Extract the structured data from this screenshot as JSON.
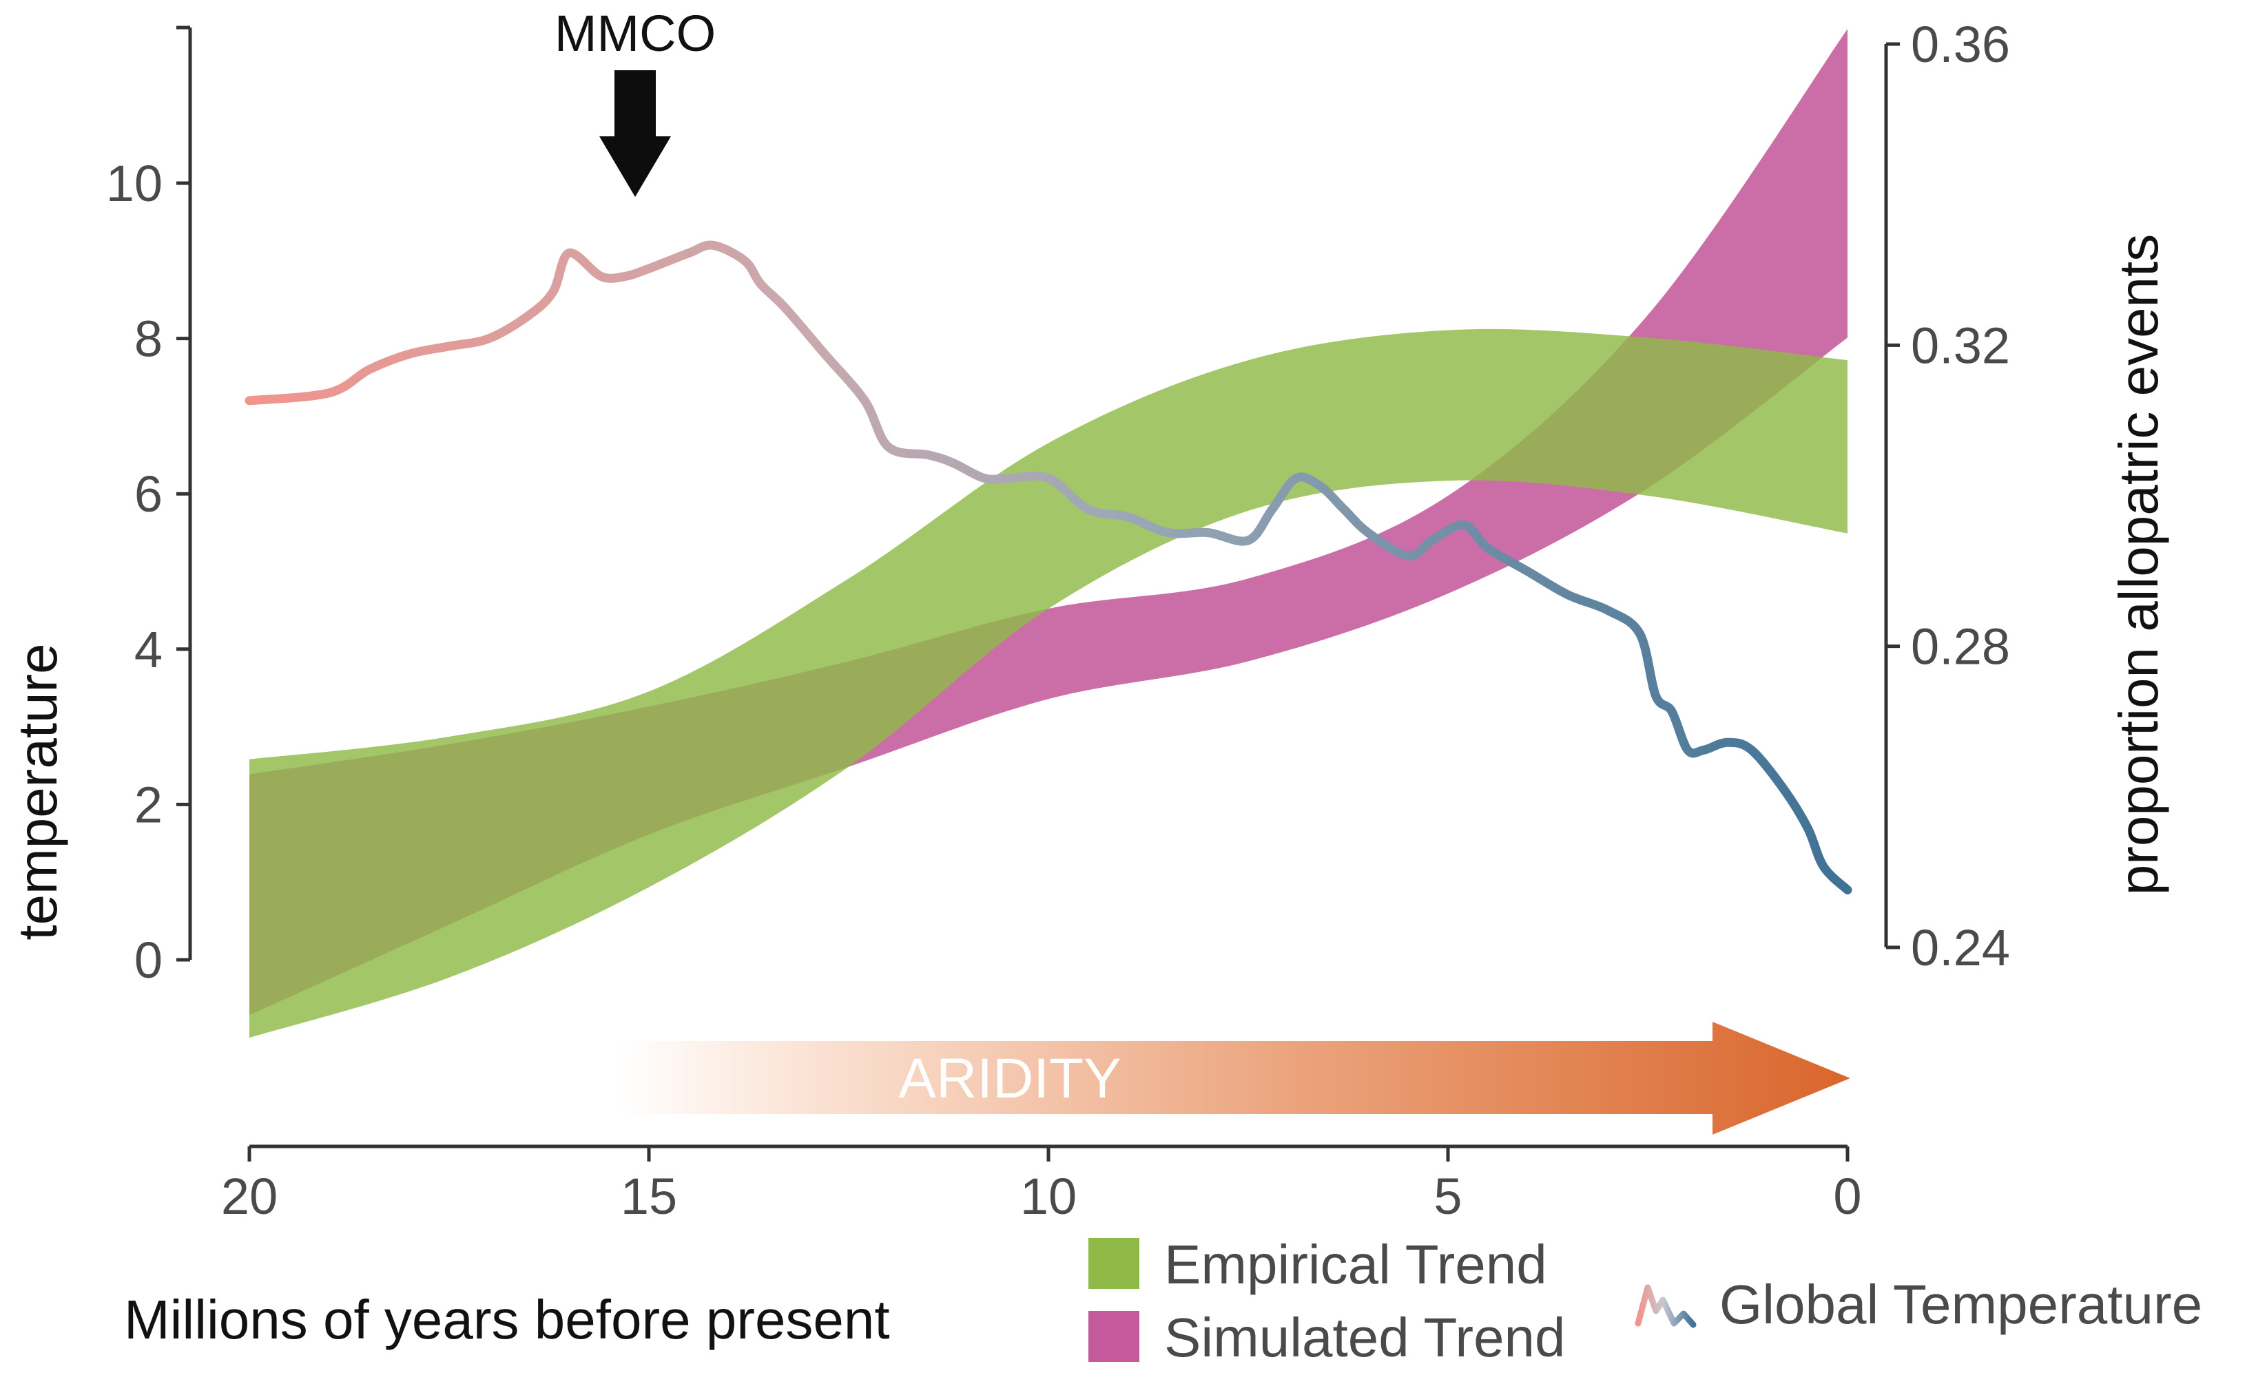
{
  "chart_data": {
    "type": "area",
    "xlabel": "Millions of years before present",
    "ylabel_left": "temperature",
    "ylabel_right": "proportion allopatric events",
    "xlim": [
      20,
      0
    ],
    "x_reversed": true,
    "ylim_left": [
      0,
      11
    ],
    "ylim_right": [
      0.24,
      0.36
    ],
    "x_ticks": [
      "20",
      "15",
      "10",
      "5",
      "0"
    ],
    "y_left_ticks": [
      "0",
      "2",
      "4",
      "6",
      "8",
      "10"
    ],
    "y_right_ticks": [
      "0.24",
      "0.28",
      "0.32",
      "0.36"
    ],
    "grid": false,
    "legend_position": "bottom-right",
    "series": [
      {
        "name": "Empirical Trend",
        "kind": "band",
        "axis": "right",
        "color": "#8fba48",
        "x": [
          20,
          17.5,
          15,
          12.5,
          10,
          7.5,
          5,
          2.5,
          0
        ],
        "lower": [
          0.228,
          0.236,
          0.248,
          0.264,
          0.285,
          0.298,
          0.302,
          0.3,
          0.295
        ],
        "upper": [
          0.265,
          0.268,
          0.274,
          0.289,
          0.307,
          0.318,
          0.322,
          0.321,
          0.318
        ]
      },
      {
        "name": "Simulated Trend",
        "kind": "band",
        "axis": "right",
        "color": "#c45a9c",
        "x": [
          20,
          17.5,
          15,
          12.5,
          10,
          7.5,
          5,
          2.5,
          0
        ],
        "lower": [
          0.231,
          0.243,
          0.255,
          0.264,
          0.273,
          0.278,
          0.287,
          0.301,
          0.321
        ],
        "upper": [
          0.263,
          0.267,
          0.272,
          0.278,
          0.285,
          0.289,
          0.3,
          0.324,
          0.362
        ]
      },
      {
        "name": "Global Temperature",
        "kind": "line",
        "axis": "left",
        "color_start": "#f0948c",
        "color_end": "#3e7194",
        "x": [
          20,
          19,
          18.5,
          18,
          17.5,
          17,
          16.5,
          16.2,
          16,
          15.6,
          15.3,
          15,
          14.5,
          14.2,
          13.8,
          13.6,
          13.3,
          12.8,
          12.3,
          12,
          11.5,
          11.2,
          10.8,
          10.5,
          10,
          9.5,
          9,
          8.5,
          8,
          7.5,
          7.2,
          6.9,
          6.6,
          6.3,
          6,
          5.5,
          5.2,
          4.8,
          4.5,
          4,
          3.5,
          3,
          2.6,
          2.4,
          2.2,
          2.0,
          1.8,
          1.5,
          1.2,
          0.8,
          0.5,
          0.3,
          0
        ],
        "y": [
          7.2,
          7.3,
          7.6,
          7.8,
          7.9,
          8.0,
          8.3,
          8.6,
          9.1,
          8.8,
          8.8,
          8.9,
          9.1,
          9.2,
          9.0,
          8.7,
          8.4,
          7.8,
          7.2,
          6.6,
          6.5,
          6.4,
          6.2,
          6.2,
          6.2,
          5.8,
          5.7,
          5.5,
          5.5,
          5.4,
          5.8,
          6.2,
          6.1,
          5.8,
          5.5,
          5.2,
          5.4,
          5.6,
          5.3,
          5.0,
          4.7,
          4.5,
          4.2,
          3.4,
          3.2,
          2.7,
          2.7,
          2.8,
          2.7,
          2.2,
          1.7,
          1.2,
          0.9
        ]
      }
    ],
    "annotations": [
      {
        "type": "arrow",
        "label": "MMCO",
        "x": 15.0
      },
      {
        "type": "gradient-arrow",
        "label": "ARIDITY",
        "x_start": 15.3,
        "x_end": 0,
        "color_start": "#fdf1ea",
        "color_end": "#d9662c"
      }
    ],
    "legend": {
      "empirical_label": "Empirical Trend",
      "simulated_label": "Simulated Trend",
      "temperature_label": "Global Temperature"
    }
  }
}
